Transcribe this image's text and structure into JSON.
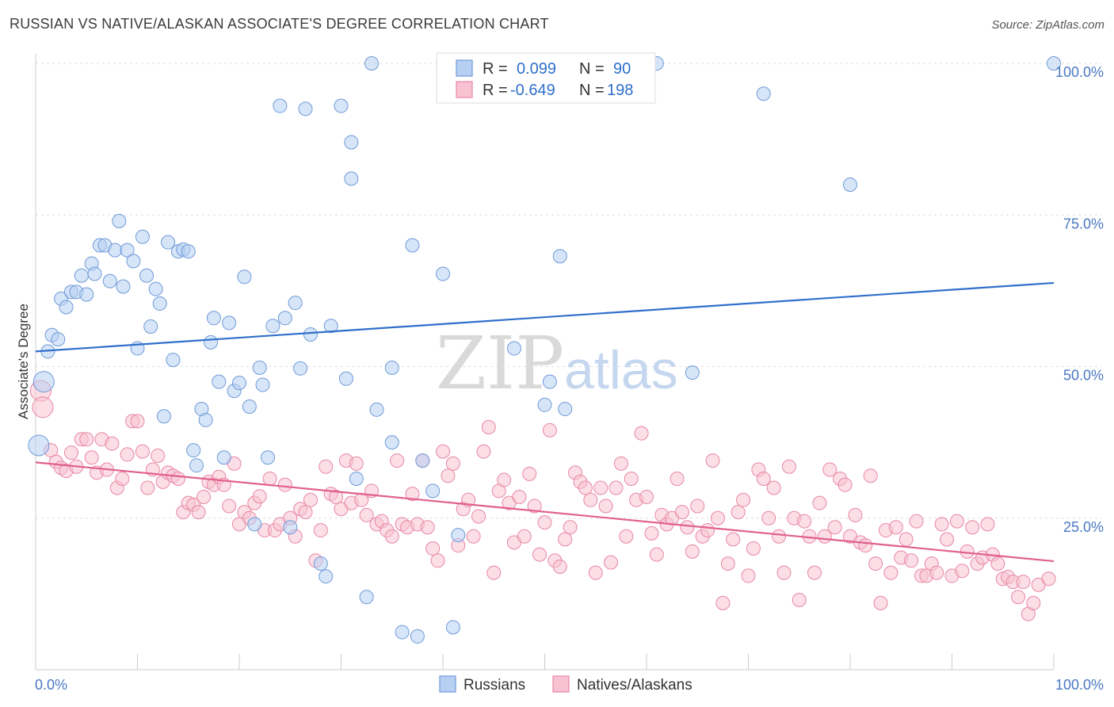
{
  "title": "RUSSIAN VS NATIVE/ALASKAN ASSOCIATE'S DEGREE CORRELATION CHART",
  "source": "Source: ZipAtlas.com",
  "watermark": {
    "zip": "ZIP",
    "atlas": "atlas"
  },
  "colors": {
    "blue_fill": "#b7cff3",
    "blue_stroke": "#6f9ad8",
    "blue_line": "#2f6fca",
    "pink_fill": "#f8c2d2",
    "pink_stroke": "#e887a6",
    "pink_line": "#e0608e",
    "label_blue": "#4a78c2",
    "grid": "#dddddd"
  },
  "legend": {
    "rows": [
      {
        "r_label": "R =",
        "r_value": "0.099",
        "n_label": "N =",
        "n_value": "90"
      },
      {
        "r_label": "R =",
        "r_value": "-0.649",
        "n_label": "N =",
        "n_value": "198"
      }
    ]
  },
  "chart_data": {
    "type": "scatter",
    "title": "RUSSIAN VS NATIVE/ALASKAN ASSOCIATE'S DEGREE CORRELATION CHART",
    "xlabel": "",
    "ylabel": "Associate's Degree",
    "xlim": [
      0,
      100
    ],
    "ylim": [
      0,
      100
    ],
    "x_tick_labels": [
      "0.0%",
      "100.0%"
    ],
    "y_tick_labels": [
      "25.0%",
      "50.0%",
      "75.0%",
      "100.0%"
    ],
    "y_ticks": [
      25,
      50,
      75,
      100
    ],
    "grid": "horizontal dashed",
    "legend_position": "top-center",
    "series": [
      {
        "name": "Russians",
        "r": 0.099,
        "n": 90,
        "trend": {
          "x": [
            0,
            100
          ],
          "y": [
            52.5,
            63.8
          ]
        },
        "points": [
          [
            0.3,
            37.0
          ],
          [
            0.8,
            47.5
          ],
          [
            1.2,
            52.5
          ],
          [
            1.6,
            55.2
          ],
          [
            2.2,
            54.5
          ],
          [
            2.5,
            61.2
          ],
          [
            3.0,
            59.8
          ],
          [
            3.5,
            62.3
          ],
          [
            4.0,
            62.3
          ],
          [
            4.5,
            65.0
          ],
          [
            5.0,
            61.9
          ],
          [
            5.5,
            67.0
          ],
          [
            5.8,
            65.3
          ],
          [
            6.3,
            70.0
          ],
          [
            6.8,
            70.0
          ],
          [
            7.3,
            64.1
          ],
          [
            7.8,
            69.2
          ],
          [
            8.2,
            74.0
          ],
          [
            8.6,
            63.2
          ],
          [
            9.0,
            69.2
          ],
          [
            9.6,
            67.4
          ],
          [
            10.0,
            53.0
          ],
          [
            10.5,
            71.4
          ],
          [
            10.9,
            65.0
          ],
          [
            11.3,
            56.6
          ],
          [
            11.8,
            62.8
          ],
          [
            12.2,
            60.4
          ],
          [
            12.6,
            41.8
          ],
          [
            13.0,
            70.5
          ],
          [
            13.5,
            51.1
          ],
          [
            14.0,
            69.0
          ],
          [
            14.5,
            69.3
          ],
          [
            15.0,
            69.0
          ],
          [
            15.5,
            36.2
          ],
          [
            15.8,
            33.7
          ],
          [
            16.3,
            43.0
          ],
          [
            16.7,
            41.2
          ],
          [
            17.2,
            54.0
          ],
          [
            17.5,
            58.0
          ],
          [
            18.0,
            47.5
          ],
          [
            18.5,
            35.0
          ],
          [
            19.0,
            57.2
          ],
          [
            19.5,
            46.0
          ],
          [
            20.0,
            47.3
          ],
          [
            20.5,
            64.8
          ],
          [
            21.0,
            43.4
          ],
          [
            21.5,
            24.0
          ],
          [
            22.0,
            49.8
          ],
          [
            22.3,
            47.0
          ],
          [
            22.8,
            35.0
          ],
          [
            23.3,
            56.7
          ],
          [
            24.0,
            93.0
          ],
          [
            24.5,
            58.0
          ],
          [
            25.0,
            23.5
          ],
          [
            25.5,
            60.5
          ],
          [
            26.0,
            49.7
          ],
          [
            26.5,
            92.5
          ],
          [
            27.0,
            55.3
          ],
          [
            28.0,
            17.5
          ],
          [
            28.5,
            15.4
          ],
          [
            29.0,
            56.7
          ],
          [
            30.0,
            93.0
          ],
          [
            30.5,
            48.0
          ],
          [
            31.0,
            87.0
          ],
          [
            31.0,
            81.0
          ],
          [
            31.5,
            31.5
          ],
          [
            32.5,
            12.0
          ],
          [
            33.0,
            100.0
          ],
          [
            33.5,
            42.9
          ],
          [
            35.0,
            49.8
          ],
          [
            35.0,
            37.5
          ],
          [
            36.0,
            6.2
          ],
          [
            37.0,
            70.0
          ],
          [
            37.5,
            5.5
          ],
          [
            38.0,
            34.5
          ],
          [
            39.0,
            29.5
          ],
          [
            40.0,
            65.3
          ],
          [
            41.0,
            7.0
          ],
          [
            41.5,
            22.2
          ],
          [
            47.0,
            53.0
          ],
          [
            50.0,
            43.7
          ],
          [
            50.5,
            47.5
          ],
          [
            51.5,
            68.2
          ],
          [
            52.0,
            43.0
          ],
          [
            60.0,
            100.0
          ],
          [
            61.0,
            100.0
          ],
          [
            64.5,
            49.0
          ],
          [
            71.5,
            95.0
          ],
          [
            80.0,
            80.0
          ],
          [
            100.0,
            100.0
          ]
        ]
      },
      {
        "name": "Natives/Alaskans",
        "r": -0.649,
        "n": 198,
        "trend": {
          "x": [
            0,
            100
          ],
          "y": [
            34.2,
            17.9
          ]
        },
        "points": [
          [
            0.5,
            46.0
          ],
          [
            0.7,
            43.3
          ],
          [
            1.5,
            36.2
          ],
          [
            2.0,
            34.3
          ],
          [
            2.5,
            33.3
          ],
          [
            3.0,
            32.8
          ],
          [
            3.5,
            35.8
          ],
          [
            4.0,
            33.5
          ],
          [
            4.5,
            38.0
          ],
          [
            5.0,
            38.0
          ],
          [
            5.5,
            35.0
          ],
          [
            6.0,
            32.5
          ],
          [
            6.5,
            38.0
          ],
          [
            7.0,
            33.0
          ],
          [
            7.5,
            37.3
          ],
          [
            8.0,
            30.0
          ],
          [
            8.5,
            31.5
          ],
          [
            9.0,
            35.5
          ],
          [
            9.5,
            41.0
          ],
          [
            10.0,
            41.0
          ],
          [
            10.5,
            36.0
          ],
          [
            11.0,
            30.0
          ],
          [
            11.5,
            33.0
          ],
          [
            12.0,
            35.3
          ],
          [
            12.5,
            31.0
          ],
          [
            13.0,
            32.5
          ],
          [
            13.5,
            32.0
          ],
          [
            14.0,
            31.5
          ],
          [
            14.5,
            26.0
          ],
          [
            15.0,
            27.5
          ],
          [
            15.5,
            27.2
          ],
          [
            16.0,
            26.0
          ],
          [
            16.5,
            28.5
          ],
          [
            17.0,
            31.0
          ],
          [
            17.5,
            30.5
          ],
          [
            18.0,
            31.8
          ],
          [
            18.5,
            30.5
          ],
          [
            19.0,
            27.0
          ],
          [
            19.5,
            34.0
          ],
          [
            20.0,
            24.0
          ],
          [
            20.5,
            26.0
          ],
          [
            21.0,
            25.0
          ],
          [
            21.5,
            27.5
          ],
          [
            22.0,
            28.6
          ],
          [
            22.5,
            23.0
          ],
          [
            23.0,
            31.5
          ],
          [
            23.5,
            23.0
          ],
          [
            24.0,
            24.0
          ],
          [
            24.5,
            30.5
          ],
          [
            25.0,
            25.0
          ],
          [
            25.5,
            22.0
          ],
          [
            26.0,
            26.5
          ],
          [
            26.5,
            26.0
          ],
          [
            27.0,
            28.0
          ],
          [
            27.5,
            18.0
          ],
          [
            28.0,
            23.0
          ],
          [
            28.5,
            33.5
          ],
          [
            29.0,
            29.0
          ],
          [
            29.5,
            28.5
          ],
          [
            30.0,
            26.5
          ],
          [
            30.5,
            34.5
          ],
          [
            31.0,
            27.5
          ],
          [
            31.5,
            34.0
          ],
          [
            32.0,
            28.0
          ],
          [
            32.5,
            25.5
          ],
          [
            33.0,
            29.5
          ],
          [
            33.5,
            24.0
          ],
          [
            34.0,
            24.5
          ],
          [
            34.5,
            23.0
          ],
          [
            35.0,
            22.0
          ],
          [
            35.5,
            34.5
          ],
          [
            36.0,
            24.0
          ],
          [
            36.5,
            23.5
          ],
          [
            37.0,
            29.0
          ],
          [
            37.5,
            24.0
          ],
          [
            38.0,
            34.5
          ],
          [
            38.5,
            23.5
          ],
          [
            39.0,
            20.0
          ],
          [
            39.5,
            18.0
          ],
          [
            40.0,
            36.0
          ],
          [
            40.5,
            32.0
          ],
          [
            41.0,
            34.0
          ],
          [
            41.5,
            20.5
          ],
          [
            42.0,
            26.5
          ],
          [
            42.5,
            28.0
          ],
          [
            43.0,
            22.0
          ],
          [
            43.5,
            25.3
          ],
          [
            44.0,
            36.0
          ],
          [
            44.5,
            40.0
          ],
          [
            45.0,
            16.0
          ],
          [
            45.5,
            29.5
          ],
          [
            46.0,
            31.3
          ],
          [
            46.5,
            27.5
          ],
          [
            47.0,
            21.0
          ],
          [
            47.5,
            28.5
          ],
          [
            48.0,
            22.0
          ],
          [
            48.5,
            32.3
          ],
          [
            49.0,
            27.0
          ],
          [
            49.5,
            19.0
          ],
          [
            50.0,
            24.3
          ],
          [
            50.5,
            39.5
          ],
          [
            51.0,
            18.0
          ],
          [
            51.5,
            17.0
          ],
          [
            52.0,
            21.5
          ],
          [
            52.5,
            23.5
          ],
          [
            53.0,
            32.5
          ],
          [
            53.5,
            31.0
          ],
          [
            54.0,
            30.0
          ],
          [
            54.5,
            28.0
          ],
          [
            55.0,
            16.0
          ],
          [
            55.5,
            30.0
          ],
          [
            56.0,
            27.0
          ],
          [
            56.5,
            17.7
          ],
          [
            57.0,
            30.0
          ],
          [
            57.5,
            34.0
          ],
          [
            58.0,
            22.0
          ],
          [
            58.5,
            31.5
          ],
          [
            59.0,
            28.0
          ],
          [
            59.5,
            39.0
          ],
          [
            60.0,
            28.5
          ],
          [
            60.5,
            22.5
          ],
          [
            61.0,
            19.0
          ],
          [
            61.5,
            25.5
          ],
          [
            62.0,
            24.0
          ],
          [
            62.5,
            25.0
          ],
          [
            63.0,
            31.5
          ],
          [
            63.5,
            26.0
          ],
          [
            64.0,
            23.5
          ],
          [
            64.5,
            19.5
          ],
          [
            65.0,
            27.0
          ],
          [
            65.5,
            22.0
          ],
          [
            66.0,
            23.0
          ],
          [
            66.5,
            34.5
          ],
          [
            67.0,
            25.0
          ],
          [
            67.5,
            11.0
          ],
          [
            68.0,
            17.5
          ],
          [
            68.5,
            21.5
          ],
          [
            69.0,
            26.0
          ],
          [
            69.5,
            28.0
          ],
          [
            70.0,
            15.5
          ],
          [
            70.5,
            20.0
          ],
          [
            71.0,
            33.0
          ],
          [
            71.5,
            31.5
          ],
          [
            72.0,
            25.0
          ],
          [
            72.5,
            30.0
          ],
          [
            73.0,
            22.0
          ],
          [
            73.5,
            16.0
          ],
          [
            74.0,
            33.5
          ],
          [
            74.5,
            25.0
          ],
          [
            75.0,
            11.5
          ],
          [
            75.5,
            24.5
          ],
          [
            76.0,
            22.0
          ],
          [
            76.5,
            16.0
          ],
          [
            77.0,
            27.5
          ],
          [
            77.5,
            22.0
          ],
          [
            78.0,
            33.0
          ],
          [
            78.5,
            23.5
          ],
          [
            79.0,
            31.5
          ],
          [
            79.5,
            30.5
          ],
          [
            80.0,
            22.0
          ],
          [
            80.5,
            25.5
          ],
          [
            81.0,
            21.0
          ],
          [
            81.5,
            20.5
          ],
          [
            82.0,
            32.0
          ],
          [
            82.5,
            17.5
          ],
          [
            83.0,
            11.0
          ],
          [
            83.5,
            23.0
          ],
          [
            84.0,
            16.0
          ],
          [
            84.5,
            23.5
          ],
          [
            85.0,
            18.5
          ],
          [
            85.5,
            21.5
          ],
          [
            86.0,
            18.0
          ],
          [
            86.5,
            24.5
          ],
          [
            87.0,
            15.5
          ],
          [
            87.5,
            15.5
          ],
          [
            88.0,
            17.5
          ],
          [
            88.5,
            16.0
          ],
          [
            89.0,
            24.0
          ],
          [
            89.5,
            21.5
          ],
          [
            90.0,
            15.5
          ],
          [
            90.5,
            24.5
          ],
          [
            91.0,
            16.3
          ],
          [
            91.5,
            19.5
          ],
          [
            92.0,
            23.5
          ],
          [
            92.5,
            17.5
          ],
          [
            93.0,
            18.5
          ],
          [
            93.5,
            24.0
          ],
          [
            94.0,
            19.0
          ],
          [
            94.5,
            17.5
          ],
          [
            95.0,
            15.0
          ],
          [
            95.5,
            15.3
          ],
          [
            96.0,
            14.5
          ],
          [
            96.5,
            12.0
          ],
          [
            97.0,
            14.5
          ],
          [
            97.5,
            9.2
          ],
          [
            98.0,
            11.0
          ],
          [
            98.5,
            14.0
          ],
          [
            99.5,
            15.0
          ]
        ]
      }
    ]
  },
  "bottom_legend": {
    "items": [
      {
        "label": "Russians"
      },
      {
        "label": "Natives/Alaskans"
      }
    ]
  }
}
